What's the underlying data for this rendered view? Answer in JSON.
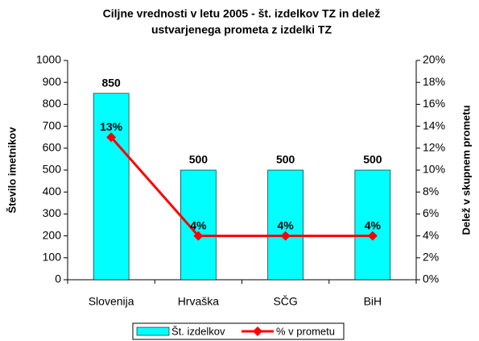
{
  "chart_data": {
    "type": "bar",
    "title": [
      "Ciljne vrednosti v letu 2005 - št. izdelkov TZ in delež",
      "ustvarjenega prometa z izdelki TZ"
    ],
    "y_label": "Število imetnikov",
    "y2_label": "Delež v skupnem prometu",
    "categories": [
      "Slovenija",
      "Hrvaška",
      "SČG",
      "BiH"
    ],
    "series": [
      {
        "name": "Št. izdelkov",
        "type": "bar",
        "color": "#00ffff",
        "values": [
          850,
          500,
          500,
          500
        ]
      },
      {
        "name": "% v prometu",
        "type": "line",
        "axis": "y2",
        "color": "#ff0000",
        "values": [
          13,
          4,
          4,
          4
        ],
        "value_labels": [
          "13%",
          "4%",
          "4%",
          "4%"
        ]
      }
    ],
    "ylim": [
      0,
      1000
    ],
    "yticks": [
      0,
      100,
      200,
      300,
      400,
      500,
      600,
      700,
      800,
      900,
      1000
    ],
    "y2lim": [
      0,
      20
    ],
    "y2ticks": [
      {
        "value": 0,
        "label": "0%"
      },
      {
        "value": 2,
        "label": "2%"
      },
      {
        "value": 4,
        "label": "4%"
      },
      {
        "value": 6,
        "label": "6%"
      },
      {
        "value": 8,
        "label": "8%"
      },
      {
        "value": 10,
        "label": "10%"
      },
      {
        "value": 12,
        "label": "12%"
      },
      {
        "value": 14,
        "label": "14%"
      },
      {
        "value": 16,
        "label": "16%"
      },
      {
        "value": 18,
        "label": "18%"
      },
      {
        "value": 20,
        "label": "20%"
      }
    ],
    "grid": false,
    "legend": "bottom"
  }
}
